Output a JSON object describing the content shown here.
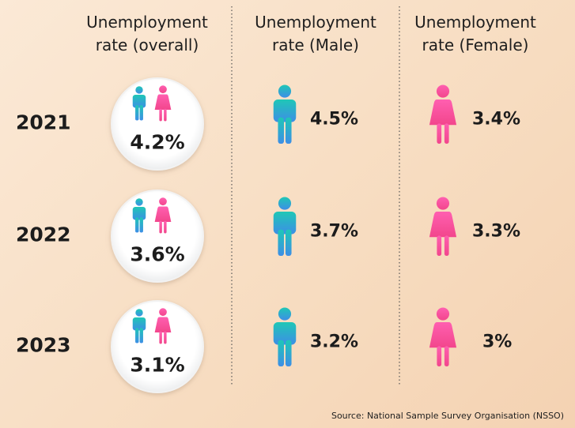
{
  "headers": [
    "Unemployment rate (overall)",
    "Unemployment rate (Male)",
    "Unemployment rate (Female)"
  ],
  "rows": [
    {
      "year": "2021",
      "overall": "4.2%",
      "male": "4.5%",
      "female": "3.4%"
    },
    {
      "year": "2022",
      "overall": "3.6%",
      "male": "3.7%",
      "female": "3.3%"
    },
    {
      "year": "2023",
      "overall": "3.1%",
      "male": "3.2%",
      "female": "3%"
    }
  ],
  "source": "Source: National Sample Survey Organisation (NSSO)"
}
